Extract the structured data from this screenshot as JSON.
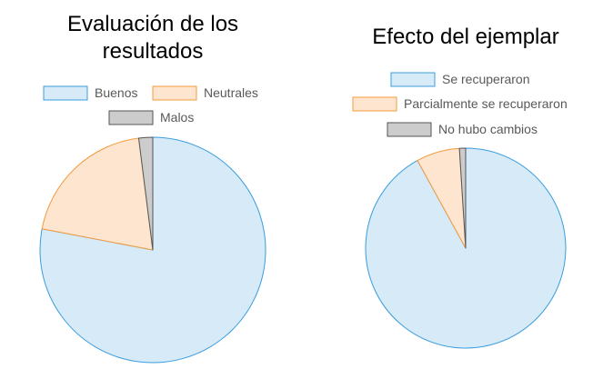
{
  "chart_data": [
    {
      "type": "pie",
      "title_lines": [
        "Evaluación de los",
        "resultados"
      ],
      "categories": [
        "Buenos",
        "Neutrales",
        "Malos"
      ],
      "values": [
        78,
        20,
        2
      ],
      "colors": {
        "fills": [
          "#d6eaf8",
          "#fde5cf",
          "#cccccc"
        ],
        "strokes": [
          "#3b9ddd",
          "#f59a3c",
          "#555555"
        ]
      },
      "start_angle_deg": 0,
      "direction": "clockwise",
      "legend_placement": "top"
    },
    {
      "type": "pie",
      "title_lines": [
        "Efecto del ejemplar"
      ],
      "categories": [
        "Se recuperaron",
        "Parcialmente se recuperaron",
        "No hubo cambios"
      ],
      "values": [
        92,
        7,
        1
      ],
      "colors": {
        "fills": [
          "#d6eaf8",
          "#fde5cf",
          "#cccccc"
        ],
        "strokes": [
          "#3b9ddd",
          "#f59a3c",
          "#555555"
        ]
      },
      "start_angle_deg": 0,
      "direction": "clockwise",
      "legend_placement": "top"
    }
  ]
}
